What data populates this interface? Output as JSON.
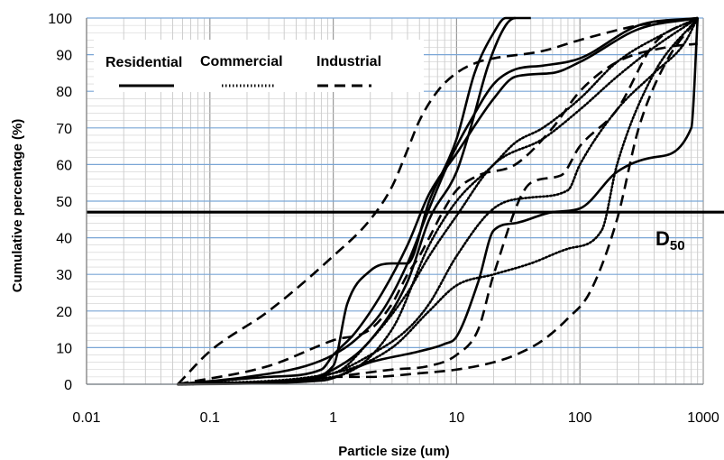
{
  "chart_data": {
    "type": "line",
    "x_scale": "log",
    "xlim": [
      0.01,
      1000
    ],
    "ylim": [
      0,
      100
    ],
    "grid": true,
    "xlabel": "Particle size (um)",
    "ylabel": "Cumulative percentage (%)",
    "x_ticks": [
      "0.01",
      "0.1",
      "1",
      "10",
      "100",
      "1000"
    ],
    "y_ticks": [
      "0",
      "10",
      "20",
      "30",
      "40",
      "50",
      "60",
      "70",
      "80",
      "90",
      "100"
    ],
    "legend": {
      "placement": "top-left",
      "entries": [
        {
          "label": "Residential",
          "style": "solid"
        },
        {
          "label": "Commercial",
          "style": "dotted"
        },
        {
          "label": "Industrial",
          "style": "dashed"
        }
      ]
    },
    "reference_line": {
      "y": 47,
      "label_main": "D",
      "label_sub": "50"
    },
    "series": [
      {
        "style": "solid",
        "x": [
          0.055,
          0.2,
          0.6,
          1,
          1.5,
          2.5,
          4,
          6,
          8,
          10,
          13,
          20,
          30,
          50,
          100,
          300,
          900
        ],
        "y": [
          0,
          2,
          5,
          8,
          12,
          20,
          33,
          48,
          58,
          65,
          72,
          82,
          86,
          87,
          89,
          98,
          100
        ]
      },
      {
        "style": "solid",
        "x": [
          0.055,
          0.3,
          0.8,
          1,
          1.5,
          2.5,
          4,
          6,
          10,
          20,
          30,
          60,
          100,
          300,
          900
        ],
        "y": [
          0,
          2,
          4,
          8,
          14,
          25,
          38,
          52,
          63,
          78,
          84,
          85,
          88,
          97,
          100
        ]
      },
      {
        "style": "solid",
        "x": [
          0.055,
          0.5,
          1,
          1.3,
          2,
          3,
          4,
          6,
          10,
          14,
          20,
          25,
          30
        ],
        "y": [
          0,
          1,
          5,
          22,
          31,
          33,
          33,
          50,
          67,
          85,
          96,
          100,
          100
        ]
      },
      {
        "style": "solid",
        "x": [
          0.055,
          0.5,
          1,
          2,
          4,
          6,
          10,
          13,
          18,
          25,
          30,
          40
        ],
        "y": [
          0,
          1,
          4,
          12,
          28,
          45,
          58,
          70,
          87,
          98,
          100,
          100
        ]
      },
      {
        "style": "solid",
        "x": [
          0.055,
          0.8,
          2,
          5,
          8,
          10,
          15,
          20,
          30,
          60,
          100,
          200,
          400,
          800,
          900
        ],
        "y": [
          0,
          1,
          6,
          9,
          11,
          13,
          28,
          42,
          44,
          47,
          48,
          58,
          62,
          70,
          100
        ]
      },
      {
        "style": "dotted",
        "x": [
          0.055,
          0.5,
          1,
          2,
          4,
          6,
          10,
          20,
          40,
          80,
          100,
          200,
          400,
          700,
          900
        ],
        "y": [
          0,
          1,
          3,
          8,
          15,
          22,
          35,
          48,
          51,
          53,
          60,
          75,
          85,
          93,
          100
        ]
      },
      {
        "style": "dotted",
        "x": [
          0.055,
          1,
          3,
          6,
          10,
          20,
          40,
          80,
          150,
          200,
          400,
          900
        ],
        "y": [
          0,
          3,
          10,
          20,
          27,
          30,
          33,
          37,
          42,
          60,
          85,
          100
        ]
      },
      {
        "style": "dotted",
        "x": [
          0.055,
          1,
          2,
          4,
          6,
          10,
          20,
          50,
          100,
          200,
          400,
          900
        ],
        "y": [
          0,
          3,
          12,
          25,
          35,
          46,
          60,
          67,
          75,
          84,
          92,
          100
        ]
      },
      {
        "style": "dotted",
        "x": [
          0.055,
          1,
          3,
          6,
          10,
          20,
          30,
          50,
          100,
          200,
          500,
          900
        ],
        "y": [
          0,
          2,
          15,
          38,
          50,
          60,
          66,
          70,
          78,
          88,
          96,
          100
        ]
      },
      {
        "style": "dashed",
        "x": [
          0.055,
          0.1,
          0.3,
          1,
          2,
          3,
          4,
          5,
          7,
          10,
          15,
          20,
          50,
          100,
          300,
          900
        ],
        "y": [
          0,
          9,
          20,
          35,
          45,
          54,
          64,
          72,
          80,
          85,
          88,
          89,
          91,
          94,
          98,
          100
        ]
      },
      {
        "style": "dashed",
        "x": [
          0.055,
          0.3,
          1,
          2,
          3,
          4,
          5,
          6,
          8,
          10,
          15,
          30,
          60,
          100,
          200,
          500,
          900
        ],
        "y": [
          0,
          5,
          12,
          15,
          22,
          30,
          35,
          40,
          48,
          53,
          57,
          60,
          70,
          80,
          88,
          92,
          93
        ]
      },
      {
        "style": "dashed",
        "x": [
          0.055,
          0.5,
          1,
          3,
          6,
          10,
          15,
          20,
          40,
          70,
          100,
          200,
          400,
          900
        ],
        "y": [
          0,
          1,
          2,
          4,
          5,
          8,
          15,
          30,
          55,
          57,
          65,
          75,
          93,
          100
        ]
      },
      {
        "style": "dashed",
        "x": [
          0.055,
          0.5,
          1,
          2,
          5,
          10,
          20,
          30,
          50,
          80,
          120,
          200,
          300,
          500,
          900
        ],
        "y": [
          0,
          1,
          2,
          2,
          3,
          4,
          6,
          8,
          12,
          18,
          25,
          45,
          70,
          88,
          100
        ]
      }
    ]
  }
}
